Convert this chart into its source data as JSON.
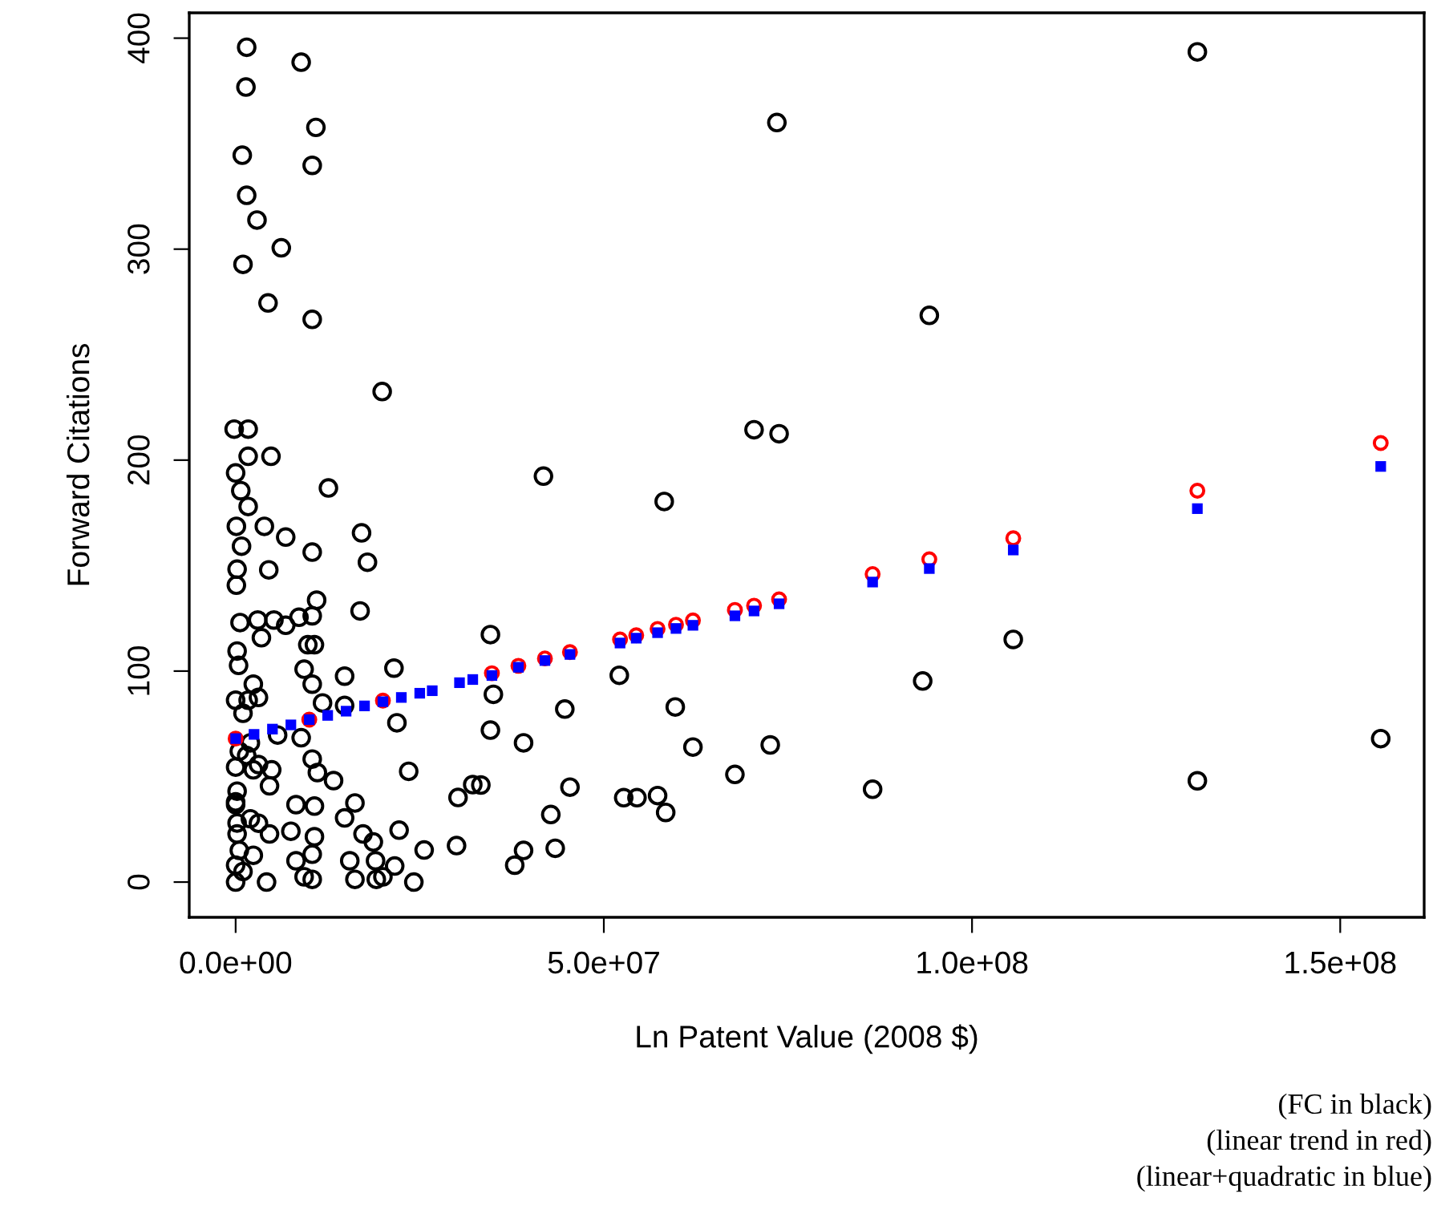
{
  "chart_data": {
    "type": "scatter",
    "xlabel": "Ln Patent Value (2008 $)",
    "ylabel": "Forward Citations",
    "xlim": [
      -6300000.0,
      161400000.0
    ],
    "ylim": [
      -16.7,
      412
    ],
    "xticks": [
      {
        "value": 0,
        "label": "0.0e+00"
      },
      {
        "value": 50000000.0,
        "label": "5.0e+07"
      },
      {
        "value": 100000000.0,
        "label": "1.0e+08"
      },
      {
        "value": 150000000.0,
        "label": "1.5e+08"
      }
    ],
    "yticks": [
      0,
      100,
      200,
      300,
      400
    ],
    "grid": false,
    "legend": false,
    "annotations": [
      "(FC in black)",
      "(linear trend in red)",
      "(linear+quadratic in blue)"
    ],
    "series": [
      {
        "color": "#000000",
        "marker": "circle",
        "x": [
          130600000.0,
          73500000.0,
          94200000.0,
          70400000.0,
          73800000.0,
          41800000.0,
          58200000.0,
          34600000.0,
          105600000.0,
          52100000.0,
          35000000.0,
          93300000.0,
          44700000.0,
          59700000.0,
          34600000.0,
          39100000.0,
          62100000.0,
          72600000.0,
          155500000.0,
          33300000.0,
          45400000.0,
          67800000.0,
          86500000.0,
          130600000.0,
          52700000.0,
          54500000.0,
          57300000.0,
          58400000.0,
          42800000.0,
          39100000.0,
          37900000.0,
          43400000.0,
          1500000.0,
          8900000.0,
          1400000.0,
          10900000.0,
          900000.0,
          10400000.0,
          1500000.0,
          2900000.0,
          6200000.0,
          1000000.0,
          4400000.0,
          10400000.0,
          19900000.0,
          -200000.0,
          1700000.0,
          1700000.0,
          4800000.0,
          0,
          12600000.0,
          700000.0,
          1700000.0,
          100000.0,
          3900000.0,
          6800000.0,
          17100000.0,
          800000.0,
          10400000.0,
          17900000.0,
          200000.0,
          4500000.0,
          100000.0,
          11000000.0,
          16900000.0,
          600000.0,
          3000000.0,
          5200000.0,
          8600000.0,
          10400000.0,
          3500000.0,
          6800000.0,
          9800000.0,
          10700000.0,
          200000.0,
          400000.0,
          9300000.0,
          14800000.0,
          21500000.0,
          10400000.0,
          2400000.0,
          0,
          3100000.0,
          11800000.0,
          14800000.0,
          21900000.0,
          5700000.0,
          8900000.0,
          0,
          3100000.0,
          10400000.0,
          11100000.0,
          13300000.0,
          23500000.0,
          32200000.0,
          30200000.0,
          200000.0,
          4600000.0,
          0,
          8200000.0,
          10700000.0,
          16200000.0,
          14800000.0,
          7500000.0,
          22200000.0,
          17300000.0,
          10700000.0,
          25600000.0,
          30000000.0,
          18700000.0,
          4600000.0,
          200000.0,
          2400000.0,
          8200000.0,
          15500000.0,
          19000000.0,
          21600000.0,
          24200000.0,
          16200000.0,
          19100000.0,
          20000000.0,
          10400000.0,
          9300000.0,
          4200000.0,
          0,
          0,
          500000.0,
          200000.0,
          0,
          1000000.0,
          2000000.0,
          1500000.0,
          500000.0,
          2000000.0,
          1000000.0,
          2400000.0,
          4900000.0,
          10400000.0,
          3100000.0,
          1700000.0
        ],
        "values": [
          393.5,
          360,
          268.6,
          214.4,
          212.5,
          192.4,
          180.4,
          117.3,
          115,
          98,
          89,
          95.3,
          82,
          83,
          72,
          66,
          64,
          65,
          68,
          46,
          45,
          51,
          44,
          48,
          40,
          40,
          41,
          33,
          32,
          15,
          8,
          16,
          395.7,
          388.6,
          376.8,
          357.7,
          344.5,
          339.7,
          325.5,
          313.8,
          300.6,
          292.8,
          274.5,
          266.7,
          232.5,
          214.7,
          214.7,
          201.8,
          201.8,
          193.9,
          186.8,
          185.5,
          178,
          168.6,
          168.6,
          163.5,
          165.5,
          159.2,
          156.4,
          151.6,
          148.3,
          148,
          140.7,
          133.6,
          128.5,
          123,
          124.2,
          124.2,
          125.5,
          126.2,
          115.8,
          121.7,
          112.5,
          112.5,
          109.5,
          102.7,
          100.9,
          97.6,
          101.4,
          93.8,
          93.8,
          86.2,
          87.5,
          84.9,
          83.7,
          75.5,
          69.7,
          68.4,
          54.5,
          55.7,
          58.3,
          51.9,
          48.1,
          52.5,
          46.2,
          40.1,
          43.1,
          45.6,
          36.7,
          36.7,
          36,
          37.5,
          30.4,
          24.1,
          24.6,
          22.8,
          21.5,
          15.2,
          17.3,
          19,
          22.8,
          22.8,
          12.7,
          10.1,
          10.1,
          10.1,
          7.6,
          0,
          1.3,
          1.3,
          2.5,
          1.3,
          2.5,
          0,
          0,
          8,
          15,
          28,
          38,
          5,
          30,
          60,
          62,
          66,
          80,
          53.2,
          53.2,
          13.2,
          27.9,
          86.2
        ]
      },
      {
        "color": "#ff0000",
        "marker": "circle",
        "x": [
          0,
          10000000.0,
          20000000.0,
          34800000.0,
          38400000.0,
          42000000.0,
          45400000.0,
          52200000.0,
          54400000.0,
          57300000.0,
          59800000.0,
          62100000.0,
          67800000.0,
          70400000.0,
          73800000.0,
          86500000.0,
          94200000.0,
          105600000.0,
          130600000.0,
          155500000.0
        ],
        "values": [
          68,
          77,
          86,
          99,
          102.5,
          106,
          109,
          115,
          117,
          120,
          122,
          124,
          129,
          131,
          134,
          146,
          153,
          163,
          185.5,
          208.1
        ]
      },
      {
        "color": "#0000ff",
        "marker": "square",
        "x": [
          0,
          2500000.0,
          5000000.0,
          7500000.0,
          10000000.0,
          12500000.0,
          15000000.0,
          17500000.0,
          20000000.0,
          22500000.0,
          25000000.0,
          26700000.0,
          30400000.0,
          32200000.0,
          34800000.0,
          38400000.0,
          42000000.0,
          45400000.0,
          52200000.0,
          54400000.0,
          57300000.0,
          59800000.0,
          62100000.0,
          67800000.0,
          70400000.0,
          73800000.0,
          86500000.0,
          94200000.0,
          105600000.0,
          130600000.0,
          155500000.0
        ],
        "values": [
          68,
          70,
          72.5,
          74.5,
          77,
          79,
          81,
          83.5,
          85.5,
          87.5,
          89.5,
          90.7,
          94.5,
          96,
          97.9,
          101.8,
          105,
          107.9,
          113.3,
          115.6,
          118.2,
          120.2,
          121.7,
          126.2,
          128.5,
          131.9,
          142.2,
          148.6,
          157.4,
          177,
          197
        ]
      }
    ]
  }
}
